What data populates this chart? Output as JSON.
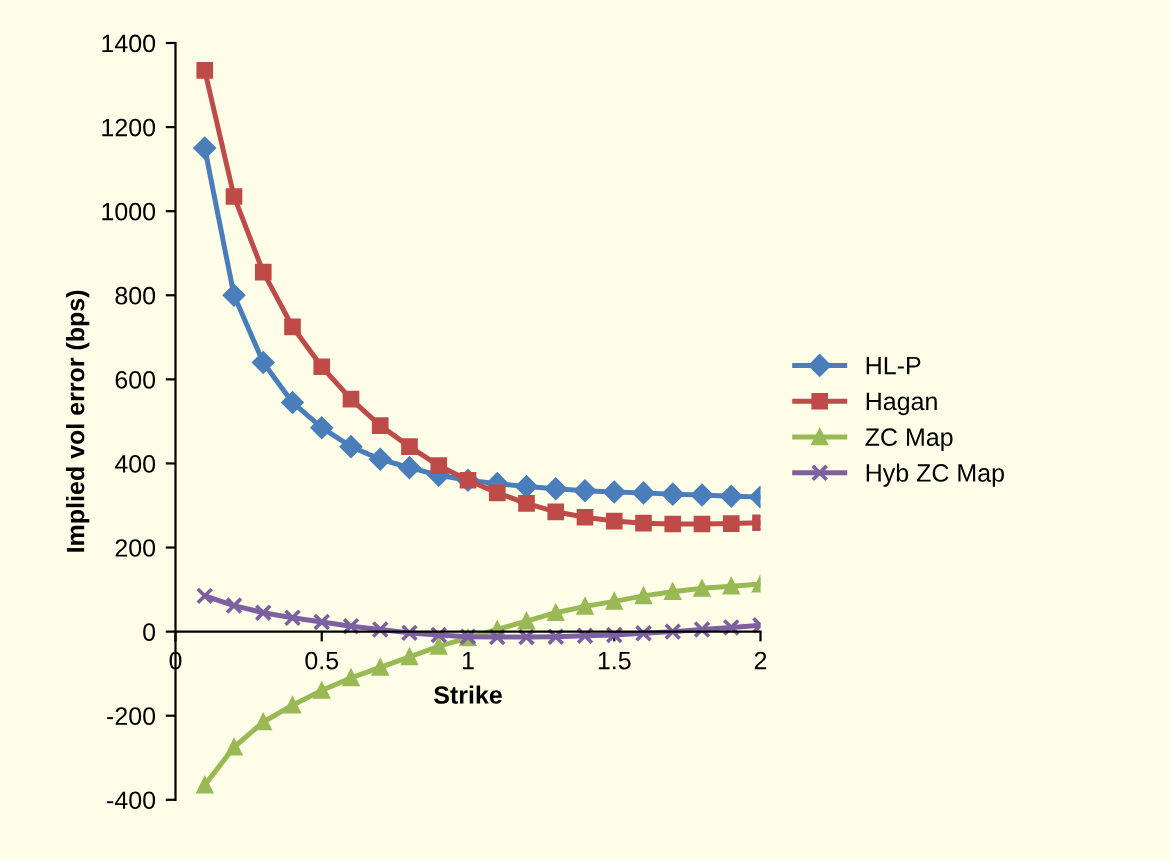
{
  "chart_data": {
    "type": "line",
    "xlabel": "Strike",
    "ylabel": "Implied vol error (bps)",
    "x": [
      0.1,
      0.2,
      0.3,
      0.4,
      0.5,
      0.6,
      0.7,
      0.8,
      0.9,
      1.0,
      1.1,
      1.2,
      1.3,
      1.4,
      1.5,
      1.6,
      1.7,
      1.8,
      1.9,
      2.0
    ],
    "series": [
      {
        "name": "HL-P",
        "color": "#4a7ebb",
        "marker": "diamond",
        "values": [
          1150,
          800,
          640,
          545,
          485,
          440,
          410,
          390,
          372,
          360,
          352,
          345,
          340,
          335,
          332,
          330,
          327,
          325,
          322,
          320
        ]
      },
      {
        "name": "Hagan",
        "color": "#be4b48",
        "marker": "square",
        "values": [
          1335,
          1035,
          855,
          725,
          630,
          553,
          490,
          440,
          395,
          360,
          330,
          305,
          285,
          272,
          263,
          258,
          256,
          256,
          257,
          259
        ]
      },
      {
        "name": "ZC Map",
        "color": "#98b954",
        "marker": "triangle",
        "values": [
          -365,
          -275,
          -215,
          -175,
          -140,
          -110,
          -85,
          -60,
          -35,
          -15,
          5,
          25,
          45,
          60,
          72,
          85,
          95,
          103,
          108,
          113
        ]
      },
      {
        "name": "Hyb ZC Map",
        "color": "#7d60a0",
        "marker": "cross",
        "values": [
          85,
          62,
          45,
          33,
          23,
          13,
          5,
          -3,
          -8,
          -12,
          -13,
          -13,
          -12,
          -10,
          -8,
          -4,
          0,
          5,
          10,
          15
        ]
      }
    ],
    "xlim": [
      0,
      2
    ],
    "xticks": [
      0,
      0.5,
      1,
      1.5,
      2
    ],
    "ylim": [
      -400,
      1400
    ],
    "yticks": [
      -400,
      -200,
      0,
      200,
      400,
      600,
      800,
      1000,
      1200,
      1400
    ],
    "grid": false,
    "legend": "right"
  }
}
